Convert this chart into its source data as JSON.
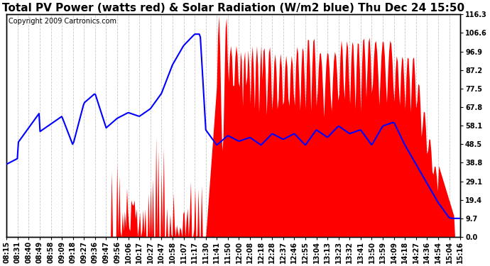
{
  "title": "Total PV Power (watts red) & Solar Radiation (W/m2 blue) Thu Dec 24 15:50",
  "copyright": "Copyright 2009 Cartronics.com",
  "y_ticks": [
    0.0,
    9.7,
    19.4,
    29.1,
    38.8,
    48.5,
    58.1,
    67.8,
    77.5,
    87.2,
    96.9,
    106.6,
    116.3
  ],
  "x_labels": [
    "08:15",
    "08:31",
    "08:40",
    "08:49",
    "08:58",
    "09:09",
    "09:18",
    "09:27",
    "09:36",
    "09:47",
    "09:56",
    "10:06",
    "10:17",
    "10:27",
    "10:47",
    "10:58",
    "11:07",
    "11:17",
    "11:30",
    "11:41",
    "11:50",
    "12:00",
    "12:08",
    "12:18",
    "12:28",
    "12:37",
    "12:46",
    "12:55",
    "13:04",
    "13:13",
    "13:23",
    "13:32",
    "13:41",
    "13:50",
    "13:59",
    "14:09",
    "14:18",
    "14:27",
    "14:36",
    "14:54",
    "15:04",
    "15:16"
  ],
  "bg_color": "#ffffff",
  "grid_color": "#c8c8c8",
  "red_color": "#ff0000",
  "blue_color": "#0000ff",
  "title_fontsize": 11,
  "copyright_fontsize": 7,
  "tick_fontsize": 7,
  "ymax": 116.3
}
